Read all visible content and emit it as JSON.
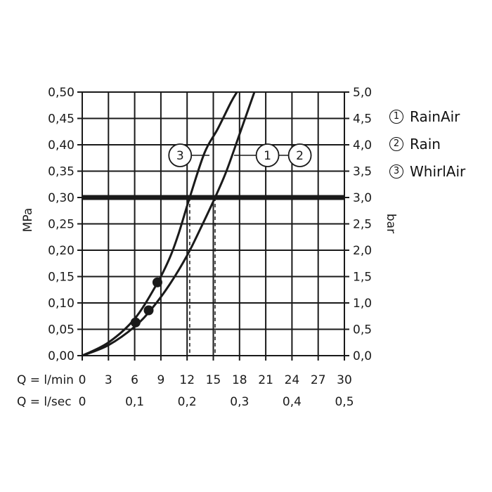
{
  "chart_data": {
    "type": "line",
    "x_axis_label_lmin": "Q = l/min",
    "x_axis_label_lsec": "Q = l/sec",
    "x_ticks_lmin": [
      "0",
      "3",
      "6",
      "9",
      "12",
      "15",
      "18",
      "21",
      "24",
      "27",
      "30"
    ],
    "x_ticks_lsec": [
      "0",
      "0,1",
      "0,2",
      "0,3",
      "0,4",
      "0,5"
    ],
    "x_ticks_lsec_values": [
      0,
      0.1,
      0.2,
      0.3,
      0.4,
      0.5
    ],
    "xlim": [
      0,
      30
    ],
    "y_left_label": "MPa",
    "y_left_ticks": [
      "0,00",
      "0,05",
      "0,10",
      "0,15",
      "0,20",
      "0,25",
      "0,30",
      "0,35",
      "0,40",
      "0,45",
      "0,50"
    ],
    "y_right_label": "bar",
    "y_right_ticks": [
      "0,0",
      "0,5",
      "1,0",
      "1,5",
      "2,0",
      "2,5",
      "3,0",
      "3,5",
      "4,0",
      "4,5",
      "5,0"
    ],
    "ylim": [
      0,
      0.5
    ],
    "grid": true,
    "reference_line": {
      "y": 0.3
    },
    "series": [
      {
        "marker": "3",
        "x": [
          0,
          3,
          6,
          8.5,
          10,
          11,
          12.3,
          14,
          15.5,
          17,
          17.7
        ],
        "y": [
          0,
          0.025,
          0.07,
          0.135,
          0.185,
          0.23,
          0.3,
          0.385,
          0.43,
          0.48,
          0.5
        ]
      },
      {
        "marker": "1 2",
        "x": [
          0,
          3,
          6,
          8,
          10,
          12,
          13.5,
          15.2,
          16.5,
          18,
          19.7
        ],
        "y": [
          0,
          0.02,
          0.055,
          0.09,
          0.135,
          0.19,
          0.24,
          0.3,
          0.35,
          0.42,
          0.5
        ]
      }
    ],
    "dashed_lines_x": [
      12.3,
      15.2
    ],
    "points": [
      {
        "x": 6.1,
        "y": 0.063
      },
      {
        "x": 7.6,
        "y": 0.086
      },
      {
        "x": 8.6,
        "y": 0.139
      }
    ],
    "annotations": [
      {
        "text": "3",
        "x": 11.2,
        "y": 0.38
      },
      {
        "text": "1",
        "x": 21.2,
        "y": 0.38
      },
      {
        "text": "2",
        "x": 24.9,
        "y": 0.38
      }
    ],
    "legend_position": "top-right",
    "legend": [
      {
        "marker": "1",
        "label": "RainAir"
      },
      {
        "marker": "2",
        "label": "Rain"
      },
      {
        "marker": "3",
        "label": "WhirlAir"
      }
    ]
  },
  "colors": {
    "ink": "#1a1a1a",
    "background": "#ffffff"
  }
}
